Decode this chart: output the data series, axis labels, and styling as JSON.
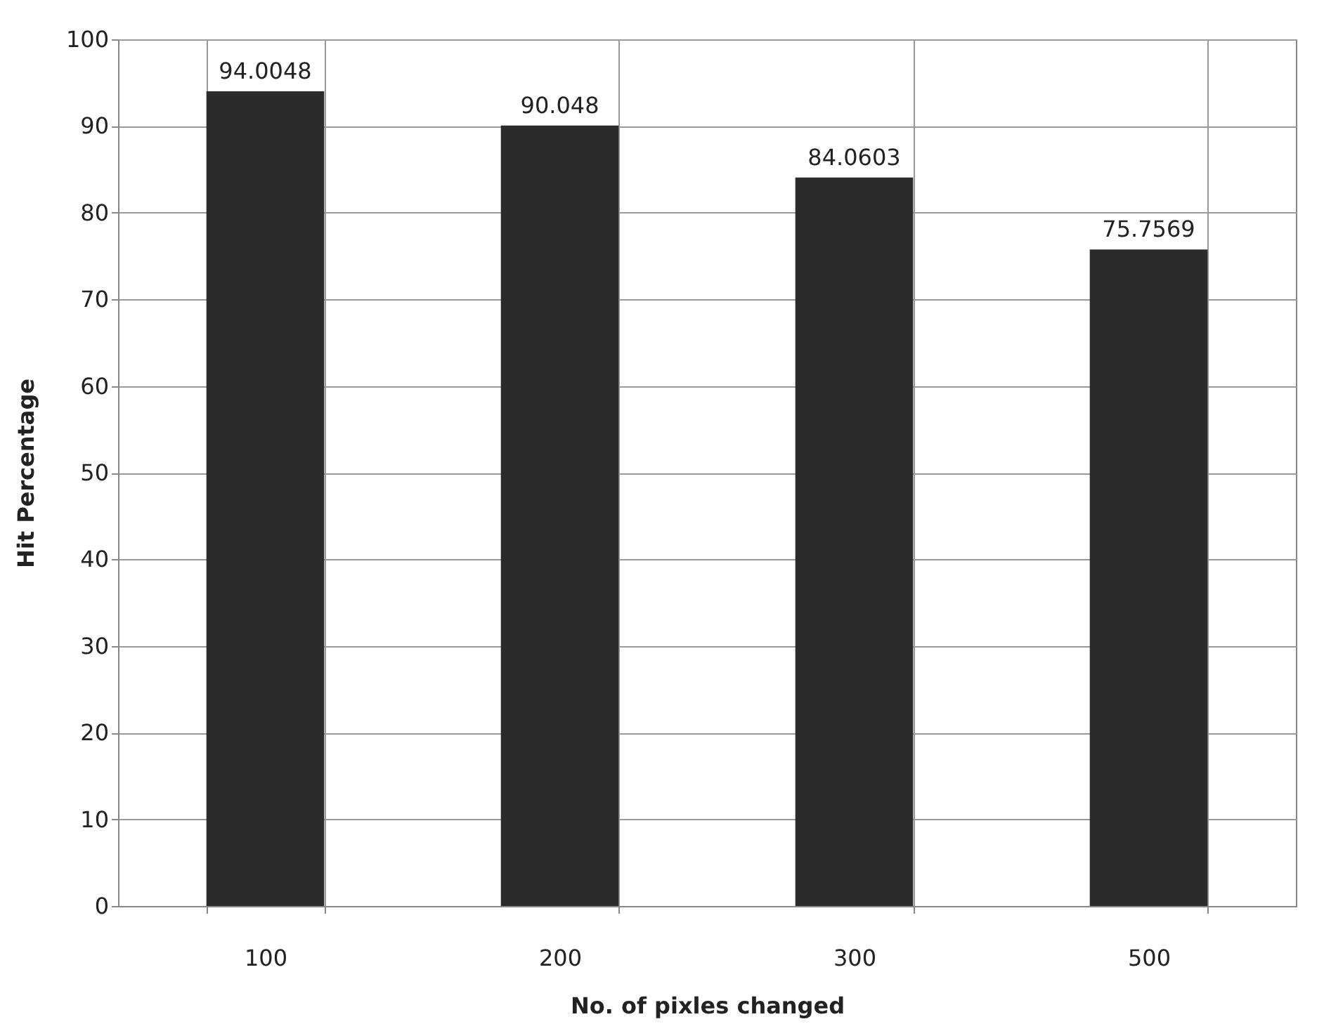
{
  "chart_data": {
    "type": "bar",
    "xlabel": "No. of pixles changed",
    "ylabel": "Hit Percentage",
    "categories": [
      "100",
      "200",
      "300",
      "500"
    ],
    "values": [
      94.0048,
      90.048,
      84.0603,
      75.7569
    ],
    "color": "#2b2b2b",
    "ylim": [
      0,
      100
    ],
    "yticks": [
      0,
      10,
      20,
      30,
      40,
      50,
      60,
      70,
      80,
      90,
      100
    ],
    "grid": true,
    "data_labels": true
  }
}
